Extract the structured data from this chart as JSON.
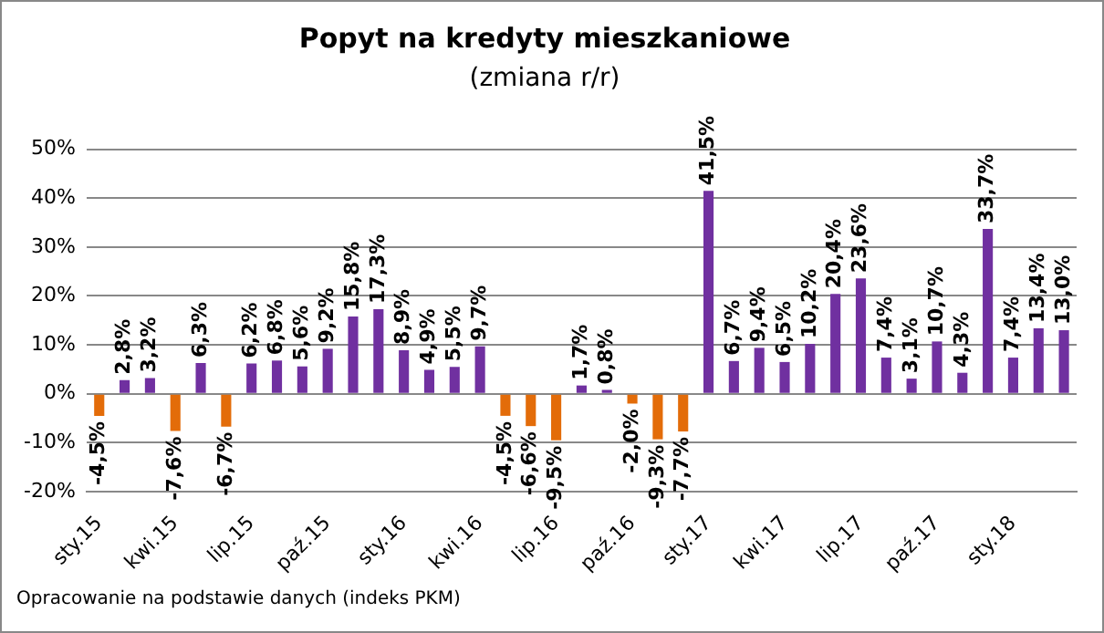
{
  "chart_data": {
    "type": "bar",
    "title": "Popyt na kredyty mieszkaniowe",
    "subtitle": "(zmiana r/r)",
    "categories": [
      "sty.15",
      null,
      null,
      "kwi.15",
      null,
      null,
      "lip.15",
      null,
      null,
      "paź.15",
      null,
      null,
      "sty.16",
      null,
      null,
      "kwi.16",
      null,
      null,
      "lip.16",
      null,
      null,
      "paź.16",
      null,
      null,
      "sty.17",
      null,
      null,
      "kwi.17",
      null,
      null,
      "lip.17",
      null,
      null,
      "paź.17",
      null,
      null,
      "sty.18",
      null,
      null
    ],
    "values": [
      -4.5,
      2.8,
      3.2,
      -7.6,
      6.3,
      -6.7,
      6.2,
      6.8,
      5.6,
      9.2,
      15.8,
      17.3,
      8.9,
      4.9,
      5.5,
      9.7,
      -4.5,
      -6.6,
      -9.5,
      1.7,
      0.8,
      -2.0,
      -9.3,
      -7.7,
      41.5,
      6.7,
      9.4,
      6.5,
      10.2,
      20.4,
      23.6,
      7.4,
      3.1,
      10.7,
      4.3,
      33.7,
      7.4,
      13.4,
      13.0
    ],
    "colors": [
      "#e36c09",
      "#7030a0",
      "#7030a0",
      "#e36c09",
      "#7030a0",
      "#e36c09",
      "#7030a0",
      "#7030a0",
      "#7030a0",
      "#7030a0",
      "#7030a0",
      "#7030a0",
      "#7030a0",
      "#7030a0",
      "#7030a0",
      "#7030a0",
      "#e36c09",
      "#e36c09",
      "#e36c09",
      "#7030a0",
      "#7030a0",
      "#e36c09",
      "#e36c09",
      "#e36c09",
      "#7030a0",
      "#7030a0",
      "#7030a0",
      "#7030a0",
      "#7030a0",
      "#7030a0",
      "#7030a0",
      "#7030a0",
      "#7030a0",
      "#7030a0",
      "#7030a0",
      "#7030a0",
      "#7030a0",
      "#7030a0",
      "#7030a0"
    ],
    "value_labels": [
      "-4,5%",
      "2,8%",
      "3,2%",
      "-7,6%",
      "6,3%",
      "-6,7%",
      "6,2%",
      "6,8%",
      "5,6%",
      "9,2%",
      "15,8%",
      "17,3%",
      "8,9%",
      "4,9%",
      "5,5%",
      "9,7%",
      "-4,5%",
      "-6,6%",
      "-9,5%",
      "1,7%",
      "0,8%",
      "-2,0%",
      "-9,3%",
      "-7,7%",
      "41,5%",
      "6,7%",
      "9,4%",
      "6,5%",
      "10,2%",
      "20,4%",
      "23,6%",
      "7,4%",
      "3,1%",
      "10,7%",
      "4,3%",
      "33,7%",
      "7,4%",
      "13,4%",
      "13,0%"
    ],
    "ylim": [
      -20,
      50
    ],
    "yticks": [
      {
        "value": -20,
        "label": "-20%"
      },
      {
        "value": -10,
        "label": "-10%"
      },
      {
        "value": 0,
        "label": "0%"
      },
      {
        "value": 10,
        "label": "10%"
      },
      {
        "value": 20,
        "label": "20%"
      },
      {
        "value": 30,
        "label": "30%"
      },
      {
        "value": 40,
        "label": "40%"
      },
      {
        "value": 50,
        "label": "50%"
      }
    ],
    "grid": "y",
    "legend": false,
    "annotations": [
      "Opracowanie na podstawie danych (indeks PKM)"
    ]
  }
}
